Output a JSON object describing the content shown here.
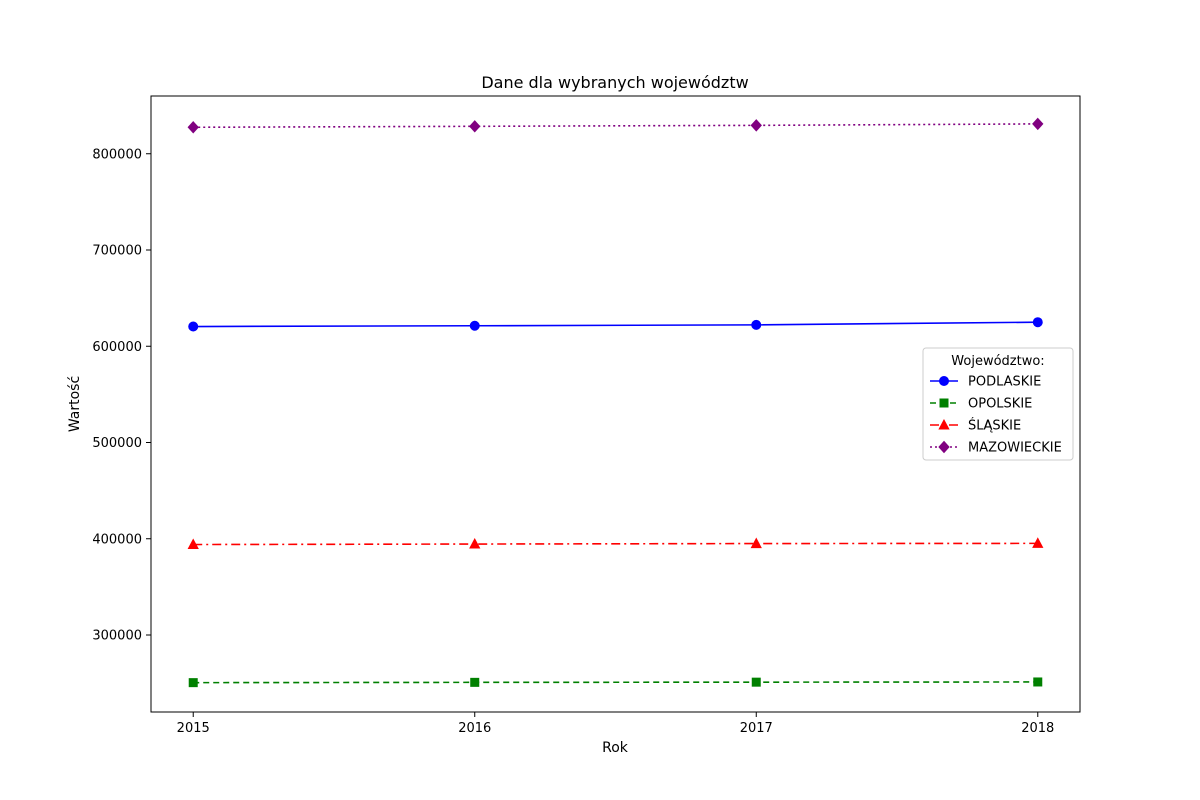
{
  "chart_data": {
    "type": "line",
    "title": "Dane dla wybranych województw",
    "xlabel": "Rok",
    "ylabel": "Wartość",
    "x": [
      2015,
      2016,
      2017,
      2018
    ],
    "x_tick_labels": [
      "2015",
      "2016",
      "2017",
      "2018"
    ],
    "ylim": [
      220000,
      860000
    ],
    "y_ticks": [
      300000,
      400000,
      500000,
      600000,
      700000,
      800000
    ],
    "y_tick_labels": [
      "300000",
      "400000",
      "500000",
      "600000",
      "700000",
      "800000"
    ],
    "grid": false,
    "legend": {
      "title": "Województwo:",
      "placement": "center-right"
    },
    "series": [
      {
        "name": "PODLASKIE",
        "values": [
          620500,
          621300,
          622200,
          625000
        ],
        "color": "#0000ff",
        "marker": "circle",
        "line_style": "solid"
      },
      {
        "name": "OPOLSKIE",
        "values": [
          250500,
          250800,
          251000,
          251200
        ],
        "color": "#008000",
        "marker": "square",
        "line_style": "dashed"
      },
      {
        "name": "ŚLĄSKIE",
        "values": [
          394000,
          394500,
          395000,
          395200
        ],
        "color": "#ff0000",
        "marker": "triangle",
        "line_style": "dashdot"
      },
      {
        "name": "MAZOWIECKIE",
        "values": [
          827500,
          828500,
          829500,
          831000
        ],
        "color": "#800080",
        "marker": "diamond",
        "line_style": "dotted"
      }
    ]
  }
}
